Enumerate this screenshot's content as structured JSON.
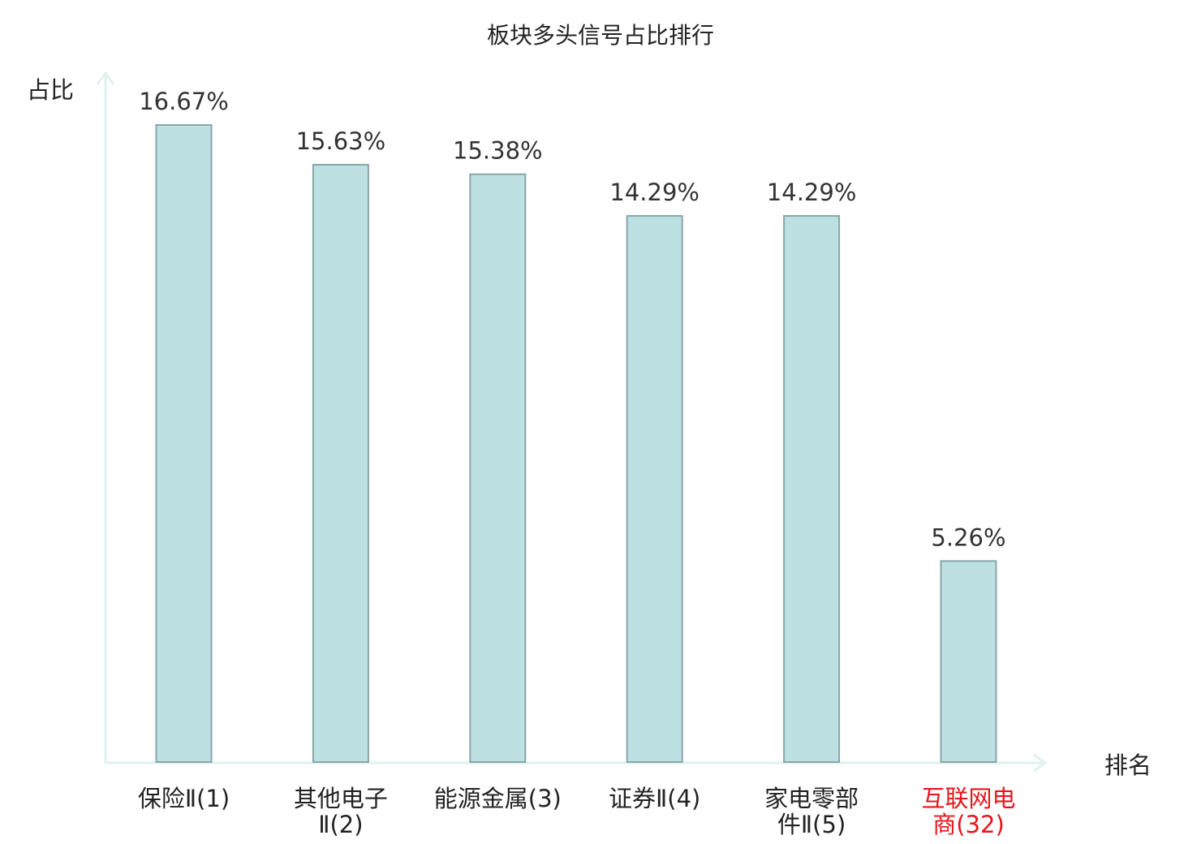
{
  "chart_data": {
    "type": "bar",
    "title": "板块多头信号占比排行",
    "xlabel": "排名",
    "ylabel": "占比",
    "ylim": [
      0,
      16.67
    ],
    "grid": false,
    "legend": "none",
    "categories": [
      [
        "保险Ⅱ(1)"
      ],
      [
        "其他电子",
        "Ⅱ(2)"
      ],
      [
        "能源金属(3)"
      ],
      [
        "证券Ⅱ(4)"
      ],
      [
        "家电零部",
        "件Ⅱ(5)"
      ],
      [
        "互联网电",
        "商(32)"
      ]
    ],
    "values": [
      16.67,
      15.63,
      15.38,
      14.29,
      14.29,
      5.26
    ],
    "value_labels": [
      "16.67%",
      "15.63%",
      "15.38%",
      "14.29%",
      "14.29%",
      "5.26%"
    ],
    "highlight_index": 5,
    "colors": {
      "bar_fill": "#bde0e3",
      "bar_stroke": "#8aa6a8",
      "axis": "#dff2ef",
      "text": "#222222",
      "value_text": "#333333",
      "highlight_text": "#e8141b"
    }
  }
}
